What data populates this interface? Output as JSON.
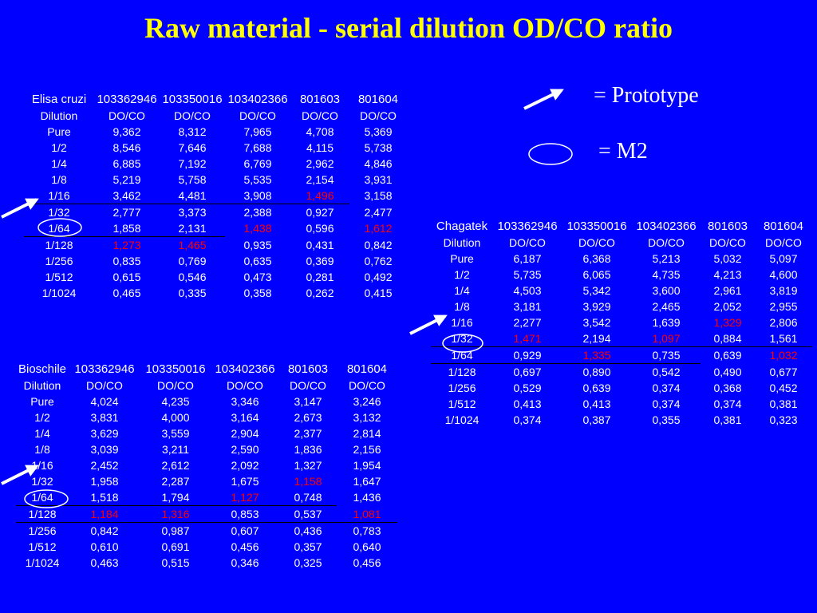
{
  "title": "Raw material  -  serial dilution OD/CO ratio",
  "legend": {
    "prototype": "= Prototype",
    "m2": "= M2",
    "prototype_icon": "arrow-icon",
    "m2_icon": "ellipse-icon"
  },
  "colors": {
    "background": "#0000ff",
    "title": "#ffff00",
    "text": "#ffffff",
    "highlight": "#ff0000",
    "line": "#000000"
  },
  "tables": [
    {
      "rows": [
        [
          "Elisa cruzi",
          "103362946",
          "103350016",
          "103402366",
          "801603",
          "801604"
        ],
        [
          "Dilution",
          "DO/CO",
          "DO/CO",
          "DO/CO",
          "DO/CO",
          "DO/CO"
        ],
        [
          "Pure",
          "9,362",
          "8,312",
          "7,965",
          "4,708",
          "5,369"
        ],
        [
          "1/2",
          "8,546",
          "7,646",
          "7,688",
          "4,115",
          "5,738"
        ],
        [
          "1/4",
          "6,885",
          "7,192",
          "6,769",
          "2,962",
          "4,846"
        ],
        [
          "1/8",
          "5,219",
          "5,758",
          "5,535",
          "2,154",
          "3,931"
        ],
        [
          "1/16",
          "3,462",
          "4,481",
          "3,908",
          "1,496",
          "3,158"
        ],
        [
          "1/32",
          "2,777",
          "3,373",
          "2,388",
          "0,927",
          "2,477"
        ],
        [
          "1/64",
          "1,858",
          "2,131",
          "1,438",
          "0,596",
          "1,612"
        ],
        [
          "1/128",
          "1,273",
          "1,465",
          "0,935",
          "0,431",
          "0,842"
        ],
        [
          "1/256",
          "0,835",
          "0,769",
          "0,635",
          "0,369",
          "0,762"
        ],
        [
          "1/512",
          "0,615",
          "0,546",
          "0,473",
          "0,281",
          "0,492"
        ],
        [
          "1/1024",
          "0,465",
          "0,335",
          "0,358",
          "0,262",
          "0,415"
        ]
      ],
      "red_cells": [
        [
          6,
          4
        ],
        [
          8,
          3
        ],
        [
          8,
          5
        ],
        [
          9,
          1
        ],
        [
          9,
          2
        ]
      ]
    },
    {
      "rows": [
        [
          "Chagatek",
          "103362946",
          "103350016",
          "103402366",
          "801603",
          "801604"
        ],
        [
          "Dilution",
          "DO/CO",
          "DO/CO",
          "DO/CO",
          "DO/CO",
          "DO/CO"
        ],
        [
          "Pure",
          "6,187",
          "6,368",
          "5,213",
          "5,032",
          "5,097"
        ],
        [
          "1/2",
          "5,735",
          "6,065",
          "4,735",
          "4,213",
          "4,600"
        ],
        [
          "1/4",
          "4,503",
          "5,342",
          "3,600",
          "2,961",
          "3,819"
        ],
        [
          "1/8",
          "3,181",
          "3,929",
          "2,465",
          "2,052",
          "2,955"
        ],
        [
          "1/16",
          "2,277",
          "3,542",
          "1,639",
          "1,329",
          "2,806"
        ],
        [
          "1/32",
          "1,471",
          "2,194",
          "1,097",
          "0,884",
          "1,561"
        ],
        [
          "1/64",
          "0,929",
          "1,335",
          "0,735",
          "0,639",
          "1,032"
        ],
        [
          "1/128",
          "0,697",
          "0,890",
          "0,542",
          "0,490",
          "0,677"
        ],
        [
          "1/256",
          "0,529",
          "0,639",
          "0,374",
          "0,368",
          "0,452"
        ],
        [
          "1/512",
          "0,413",
          "0,413",
          "0,374",
          "0,374",
          "0,381"
        ],
        [
          "1/1024",
          "0,374",
          "0,387",
          "0,355",
          "0,381",
          "0,323"
        ]
      ],
      "red_cells": [
        [
          6,
          4
        ],
        [
          7,
          1
        ],
        [
          7,
          3
        ],
        [
          8,
          2
        ],
        [
          8,
          5
        ]
      ]
    },
    {
      "rows": [
        [
          "Bioschile",
          "103362946",
          "103350016",
          "103402366",
          "801603",
          "801604"
        ],
        [
          "Dilution",
          "DO/CO",
          "DO/CO",
          "DO/CO",
          "DO/CO",
          "DO/CO"
        ],
        [
          "Pure",
          "4,024",
          "4,235",
          "3,346",
          "3,147",
          "3,246"
        ],
        [
          "1/2",
          "3,831",
          "4,000",
          "3,164",
          "2,673",
          "3,132"
        ],
        [
          "1/4",
          "3,629",
          "3,559",
          "2,904",
          "2,377",
          "2,814"
        ],
        [
          "1/8",
          "3,039",
          "3,211",
          "2,590",
          "1,836",
          "2,156"
        ],
        [
          "1/16",
          "2,452",
          "2,612",
          "2,092",
          "1,327",
          "1,954"
        ],
        [
          "1/32",
          "1,958",
          "2,287",
          "1,675",
          "1,158",
          "1,647"
        ],
        [
          "1/64",
          "1,518",
          "1,794",
          "1,127",
          "0,748",
          "1,436"
        ],
        [
          "1/128",
          "1,184",
          "1,316",
          "0,853",
          "0,537",
          "1,081"
        ],
        [
          "1/256",
          "0,842",
          "0,987",
          "0,607",
          "0,436",
          "0,783"
        ],
        [
          "1/512",
          "0,610",
          "0,691",
          "0,456",
          "0,357",
          "0,640"
        ],
        [
          "1/1024",
          "0,463",
          "0,515",
          "0,346",
          "0,325",
          "0,456"
        ]
      ],
      "red_cells": [
        [
          7,
          4
        ],
        [
          8,
          3
        ],
        [
          9,
          1
        ],
        [
          9,
          2
        ],
        [
          9,
          5
        ]
      ]
    }
  ]
}
